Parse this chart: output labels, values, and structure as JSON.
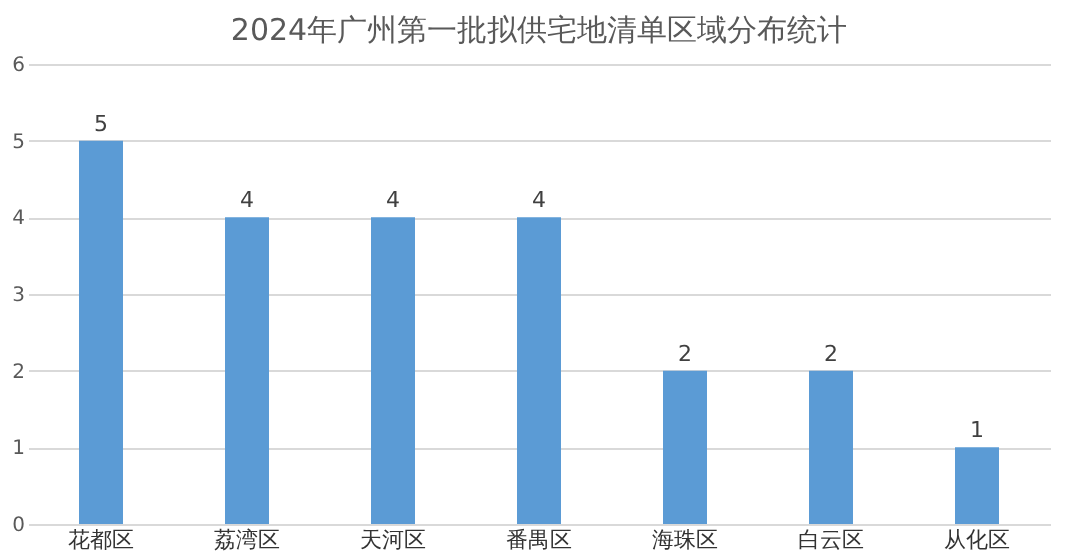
{
  "chart_data": {
    "type": "bar",
    "title": "2024年广州第一批拟供宅地清单区域分布统计",
    "categories": [
      "花都区",
      "荔湾区",
      "天河区",
      "番禺区",
      "海珠区",
      "白云区",
      "从化区"
    ],
    "values": [
      5,
      4,
      4,
      4,
      2,
      2,
      1
    ],
    "color": "#5b9bd5",
    "ylim": [
      0,
      6
    ],
    "yticks": [
      0,
      1,
      2,
      3,
      4,
      5,
      6
    ],
    "grid": "y",
    "data_labels": true
  }
}
